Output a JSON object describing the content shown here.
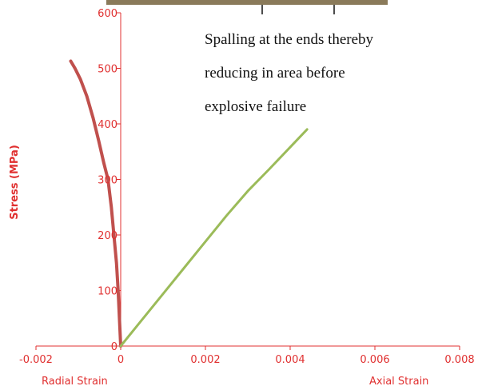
{
  "chart_data": {
    "type": "line",
    "title": "",
    "ylabel": "Stress (MPa)",
    "xlabel_left": "Radial Strain",
    "xlabel_right": "Axial Strain",
    "xlim": [
      -0.002,
      0.008
    ],
    "ylim": [
      0,
      600
    ],
    "xticks": [
      -0.002,
      0,
      0.002,
      0.004,
      0.006,
      0.008
    ],
    "xtick_labels": [
      "-0.002",
      "0",
      "0.002",
      "0.004",
      "0.006",
      "0.008"
    ],
    "yticks": [
      0,
      100,
      200,
      300,
      400,
      500,
      600
    ],
    "ytick_labels": [
      "0",
      "100",
      "200",
      "300",
      "400",
      "500",
      "600"
    ],
    "grid": false,
    "colors": {
      "axis": "#e03030",
      "radial": "#c0504d",
      "axial": "#9bbb59",
      "photo": "#8a7a5a"
    },
    "series": [
      {
        "key": "radial",
        "x": [
          0,
          -3e-05,
          -6e-05,
          -0.0001,
          -0.00016,
          -0.00022,
          -0.0003,
          -0.0004,
          -0.00052,
          -0.00065,
          -0.0008,
          -0.00095,
          -0.00108,
          -0.00118
        ],
        "y": [
          0,
          50,
          100,
          150,
          200,
          250,
          300,
          330,
          370,
          410,
          450,
          480,
          500,
          513
        ]
      },
      {
        "key": "axial",
        "x": [
          0,
          0.0005,
          0.001,
          0.0015,
          0.002,
          0.0025,
          0.003,
          0.0035,
          0.004,
          0.0044
        ],
        "y": [
          0,
          47,
          94,
          141,
          188,
          235,
          279,
          318,
          358,
          390
        ]
      }
    ],
    "annotation_lines": [
      "Spalling at the ends thereby",
      "reducing in area before",
      "explosive failure"
    ]
  }
}
